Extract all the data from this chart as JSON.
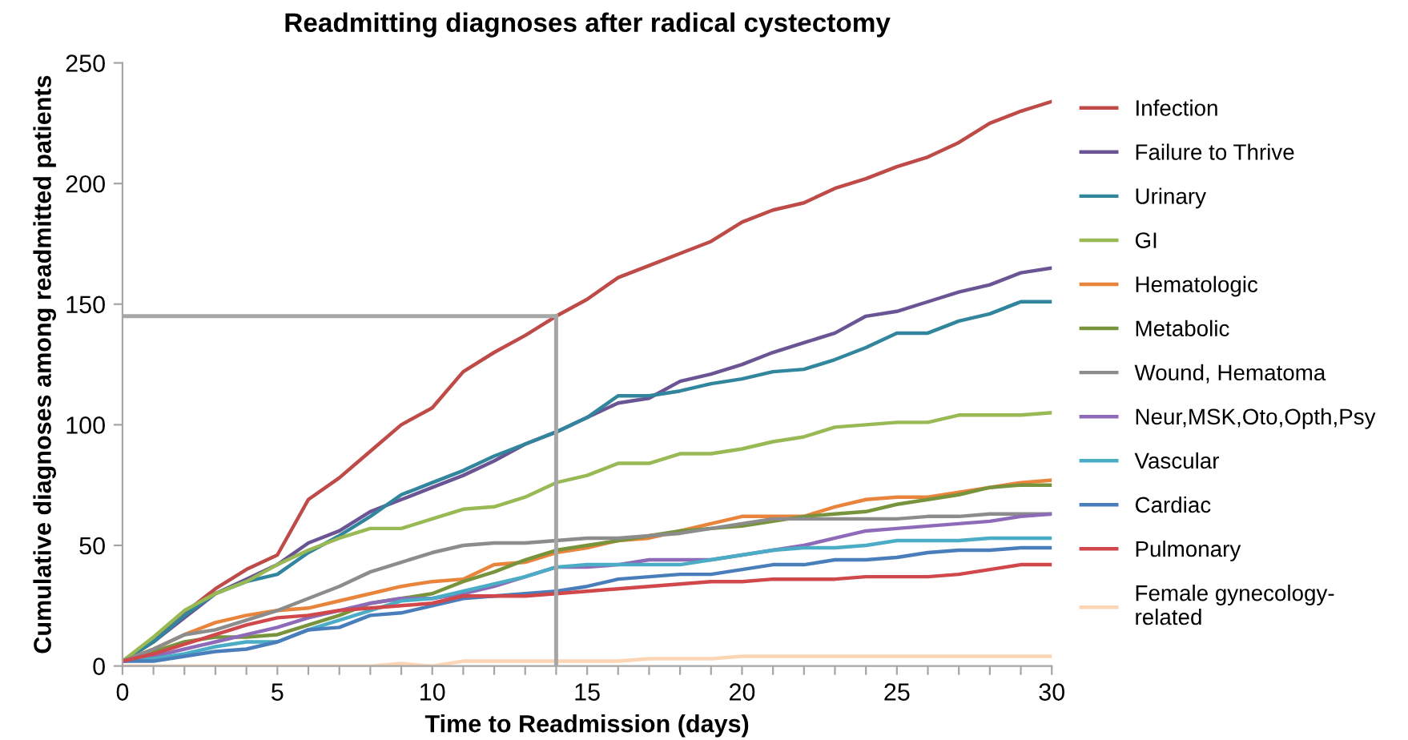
{
  "chart_data": {
    "type": "line",
    "title": "Readmitting diagnoses after radical cystectomy",
    "xlabel": "Time to Readmission (days)",
    "ylabel": "Cumulative diagnoses among readmitted patients",
    "x": [
      0,
      1,
      2,
      3,
      4,
      5,
      6,
      7,
      8,
      9,
      10,
      11,
      12,
      13,
      14,
      15,
      16,
      17,
      18,
      19,
      20,
      21,
      22,
      23,
      24,
      25,
      26,
      27,
      28,
      29,
      30
    ],
    "xlim": [
      0,
      30
    ],
    "ylim": [
      0,
      250
    ],
    "xticks": [
      0,
      {
        "value": 1,
        "label": null
      },
      {
        "value": 2,
        "label": null
      },
      {
        "value": 3,
        "label": null
      },
      {
        "value": 4,
        "label": null
      },
      5,
      {
        "value": 6,
        "label": null
      },
      {
        "value": 7,
        "label": null
      },
      {
        "value": 8,
        "label": null
      },
      {
        "value": 9,
        "label": null
      },
      10,
      {
        "value": 11,
        "label": null
      },
      {
        "value": 12,
        "label": null
      },
      {
        "value": 13,
        "label": null
      },
      {
        "value": 14,
        "label": null
      },
      15,
      {
        "value": 16,
        "label": null
      },
      {
        "value": 17,
        "label": null
      },
      {
        "value": 18,
        "label": null
      },
      {
        "value": 19,
        "label": null
      },
      20,
      {
        "value": 21,
        "label": null
      },
      {
        "value": 22,
        "label": null
      },
      {
        "value": 23,
        "label": null
      },
      {
        "value": 24,
        "label": null
      },
      25,
      {
        "value": 26,
        "label": null
      },
      {
        "value": 27,
        "label": null
      },
      {
        "value": 28,
        "label": null
      },
      {
        "value": 29,
        "label": null
      },
      30
    ],
    "yticks": [
      0,
      50,
      100,
      150,
      200,
      250
    ],
    "grid": false,
    "legend": "right",
    "marker": "none",
    "line_style": "solid",
    "ref_lines": [
      {
        "axis": "x",
        "value": 14,
        "color": "#a6a6a6"
      },
      {
        "axis": "y",
        "value": 145,
        "color": "#a6a6a6"
      }
    ],
    "series": [
      {
        "name": "Infection",
        "color": "#be4b48",
        "values": [
          2,
          10,
          22,
          32,
          40,
          46,
          69,
          78,
          89,
          100,
          107,
          122,
          130,
          137,
          145,
          152,
          161,
          166,
          171,
          176,
          184,
          189,
          192,
          198,
          202,
          207,
          211,
          217,
          225,
          230,
          234
        ]
      },
      {
        "name": "Failure to Thrive",
        "color": "#6a5494",
        "values": [
          2,
          10,
          20,
          30,
          36,
          42,
          51,
          56,
          64,
          69,
          74,
          79,
          85,
          92,
          97,
          103,
          109,
          111,
          118,
          121,
          125,
          130,
          134,
          138,
          145,
          147,
          151,
          155,
          158,
          163,
          165
        ]
      },
      {
        "name": "Urinary",
        "color": "#31859c",
        "values": [
          2,
          10,
          21,
          30,
          35,
          38,
          47,
          54,
          62,
          71,
          76,
          81,
          87,
          92,
          97,
          103,
          112,
          112,
          114,
          117,
          119,
          122,
          123,
          127,
          132,
          138,
          138,
          143,
          146,
          151,
          151
        ]
      },
      {
        "name": "GI",
        "color": "#98b954",
        "values": [
          2,
          12,
          23,
          30,
          35,
          42,
          48,
          53,
          57,
          57,
          61,
          65,
          66,
          70,
          76,
          79,
          84,
          84,
          88,
          88,
          90,
          93,
          95,
          99,
          100,
          101,
          101,
          104,
          104,
          104,
          105
        ]
      },
      {
        "name": "Hematologic",
        "color": "#e8843c",
        "values": [
          2,
          7,
          13,
          18,
          21,
          23,
          24,
          27,
          30,
          33,
          35,
          36,
          42,
          43,
          47,
          49,
          52,
          53,
          56,
          59,
          62,
          62,
          62,
          66,
          69,
          70,
          70,
          72,
          74,
          76,
          77
        ]
      },
      {
        "name": "Metabolic",
        "color": "#77933c",
        "values": [
          2,
          6,
          10,
          12,
          12,
          13,
          17,
          21,
          26,
          28,
          30,
          35,
          39,
          44,
          48,
          50,
          52,
          54,
          56,
          57,
          58,
          60,
          62,
          63,
          64,
          67,
          69,
          71,
          74,
          75,
          75
        ]
      },
      {
        "name": "Wound, Hematoma",
        "color": "#8c8c8c",
        "values": [
          2,
          7,
          13,
          15,
          19,
          23,
          28,
          33,
          39,
          43,
          47,
          50,
          51,
          51,
          52,
          53,
          53,
          54,
          55,
          57,
          59,
          61,
          61,
          61,
          61,
          61,
          62,
          62,
          63,
          63,
          63
        ]
      },
      {
        "name": "Neur,MSK,Oto,Opth,Psy",
        "color": "#8e6bb8",
        "values": [
          2,
          4,
          7,
          10,
          13,
          16,
          20,
          23,
          26,
          28,
          28,
          30,
          33,
          37,
          41,
          41,
          42,
          44,
          44,
          44,
          46,
          48,
          50,
          53,
          56,
          57,
          58,
          59,
          60,
          62,
          63
        ]
      },
      {
        "name": "Vascular",
        "color": "#4bacc6",
        "values": [
          2,
          3,
          5,
          8,
          10,
          10,
          15,
          19,
          23,
          27,
          28,
          31,
          34,
          37,
          41,
          42,
          42,
          42,
          42,
          44,
          46,
          48,
          49,
          49,
          50,
          52,
          52,
          52,
          53,
          53,
          53
        ]
      },
      {
        "name": "Cardiac",
        "color": "#4a7ebb",
        "values": [
          2,
          2,
          4,
          6,
          7,
          10,
          15,
          16,
          21,
          22,
          25,
          28,
          29,
          30,
          31,
          33,
          36,
          37,
          38,
          38,
          40,
          42,
          42,
          44,
          44,
          45,
          47,
          48,
          48,
          49,
          49
        ]
      },
      {
        "name": "Pulmonary",
        "color": "#d0484c",
        "values": [
          2,
          5,
          9,
          13,
          17,
          20,
          21,
          23,
          24,
          25,
          26,
          29,
          29,
          29,
          30,
          31,
          32,
          33,
          34,
          35,
          35,
          36,
          36,
          36,
          37,
          37,
          37,
          38,
          40,
          42,
          42
        ]
      },
      {
        "name": "Female gynecology-\nrelated",
        "color": "#fcd5b5",
        "values": [
          0,
          0,
          0,
          0,
          0,
          0,
          0,
          0,
          0,
          1,
          0,
          2,
          2,
          2,
          2,
          2,
          2,
          3,
          3,
          3,
          4,
          4,
          4,
          4,
          4,
          4,
          4,
          4,
          4,
          4,
          4
        ]
      }
    ]
  }
}
